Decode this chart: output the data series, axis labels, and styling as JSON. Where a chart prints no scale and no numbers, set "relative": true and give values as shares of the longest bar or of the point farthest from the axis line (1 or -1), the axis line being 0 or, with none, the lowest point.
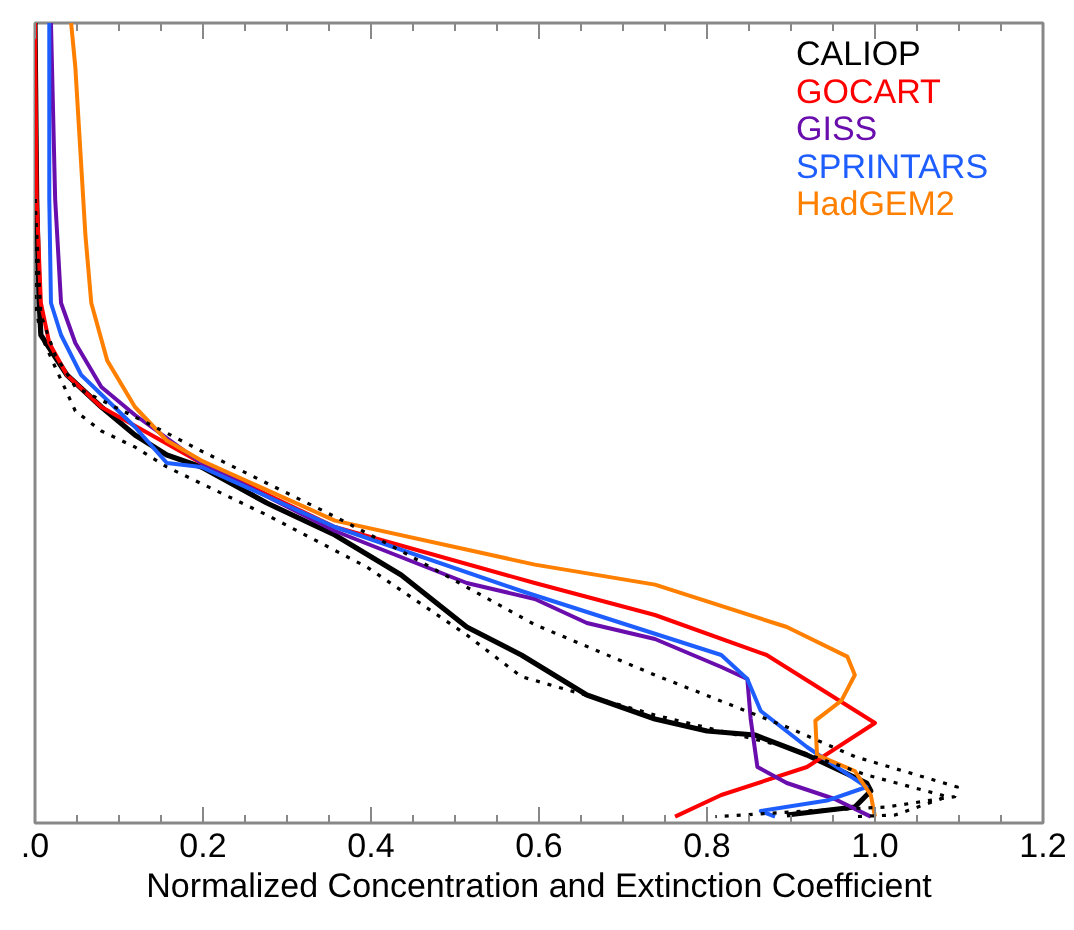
{
  "chart_data": {
    "type": "line",
    "relative": true,
    "xlabel": "Normalized Concentration and Extinction Coefficient",
    "xlim": [
      0,
      1.2
    ],
    "xticks": [
      {
        "value": 0,
        "label": ".0"
      },
      0.2,
      0.4,
      0.6,
      0.8,
      {
        "value": 1.0,
        "label": "1.0"
      },
      1.2
    ],
    "legend": "top right",
    "line_style": "solid",
    "grid": false,
    "series": [
      {
        "name": "CALIOP",
        "color": "#000000",
        "x": [
          0.0,
          0.002,
          0.005,
          0.007,
          0.038,
          0.079,
          0.119,
          0.157,
          0.198,
          0.276,
          0.357,
          0.436,
          0.514,
          0.579,
          0.657,
          0.738,
          0.8,
          0.857,
          0.919,
          0.99,
          0.995,
          0.976,
          0.895
        ],
        "values": [
          1.0,
          0.78,
          0.65,
          0.61,
          0.56,
          0.52,
          0.485,
          0.46,
          0.445,
          0.4,
          0.36,
          0.31,
          0.245,
          0.21,
          0.16,
          0.13,
          0.115,
          0.11,
          0.085,
          0.05,
          0.04,
          0.02,
          0.01
        ]
      },
      {
        "name": "GOCART",
        "color": "#ff0000",
        "x": [
          0.0,
          0.002,
          0.007,
          0.017,
          0.038,
          0.079,
          0.198,
          0.357,
          0.595,
          0.738,
          0.871,
          1.0,
          0.919,
          0.817,
          0.762
        ],
        "values": [
          1.0,
          0.78,
          0.65,
          0.6,
          0.56,
          0.52,
          0.45,
          0.37,
          0.3,
          0.26,
          0.21,
          0.125,
          0.07,
          0.035,
          0.008
        ]
      },
      {
        "name": "GISS",
        "color": "#6a0dad",
        "x": [
          0.019,
          0.024,
          0.031,
          0.048,
          0.079,
          0.119,
          0.198,
          0.357,
          0.514,
          0.595,
          0.657,
          0.738,
          0.817,
          0.848,
          0.852,
          0.86,
          0.895,
          0.952,
          0.995
        ],
        "values": [
          1.0,
          0.78,
          0.65,
          0.6,
          0.545,
          0.51,
          0.45,
          0.365,
          0.3,
          0.28,
          0.25,
          0.23,
          0.195,
          0.18,
          0.13,
          0.07,
          0.05,
          0.03,
          0.008
        ]
      },
      {
        "name": "SPRINTARS",
        "color": "#1e5eff",
        "x": [
          0.017,
          0.017,
          0.019,
          0.031,
          0.055,
          0.119,
          0.157,
          0.198,
          0.357,
          0.579,
          0.698,
          0.817,
          0.848,
          0.864,
          0.919,
          0.99,
          0.943,
          0.864,
          0.881
        ],
        "values": [
          1.0,
          0.78,
          0.65,
          0.61,
          0.56,
          0.495,
          0.45,
          0.445,
          0.37,
          0.29,
          0.25,
          0.21,
          0.18,
          0.14,
          0.095,
          0.045,
          0.028,
          0.015,
          0.008
        ]
      },
      {
        "name": "HadGEM2",
        "color": "#ff8000",
        "x": [
          0.043,
          0.048,
          0.06,
          0.067,
          0.086,
          0.119,
          0.157,
          0.198,
          0.357,
          0.595,
          0.738,
          0.895,
          0.967,
          0.976,
          0.96,
          0.929,
          0.931,
          0.976,
          0.995,
          1.0
        ],
        "values": [
          1.0,
          0.945,
          0.735,
          0.65,
          0.578,
          0.52,
          0.478,
          0.453,
          0.378,
          0.323,
          0.298,
          0.245,
          0.208,
          0.185,
          0.153,
          0.128,
          0.085,
          0.065,
          0.035,
          0.008
        ]
      },
      {
        "color": "#000000",
        "line_style": "dotted",
        "x": [
          0.0,
          0.007,
          0.024,
          0.048,
          0.095,
          0.143,
          0.198,
          0.357,
          0.436,
          0.595,
          0.738,
          0.895,
          0.976,
          1.098,
          1.095,
          1.014,
          0.919,
          0.81
        ],
        "values": [
          0.78,
          0.635,
          0.585,
          0.545,
          0.52,
          0.495,
          0.465,
          0.383,
          0.34,
          0.248,
          0.185,
          0.12,
          0.083,
          0.045,
          0.033,
          0.02,
          0.015,
          0.008
        ]
      },
      {
        "color": "#000000",
        "line_style": "dotted",
        "x": [
          0.0,
          0.0,
          0.007,
          0.024,
          0.048,
          0.079,
          0.119,
          0.157,
          0.276,
          0.395,
          0.514,
          0.579,
          0.738,
          0.895,
          0.99,
          1.086,
          1.024,
          0.976
        ],
        "values": [
          0.78,
          0.65,
          0.61,
          0.57,
          0.515,
          0.49,
          0.47,
          0.445,
          0.385,
          0.32,
          0.235,
          0.183,
          0.135,
          0.095,
          0.06,
          0.033,
          0.01,
          0.008
        ]
      }
    ]
  }
}
